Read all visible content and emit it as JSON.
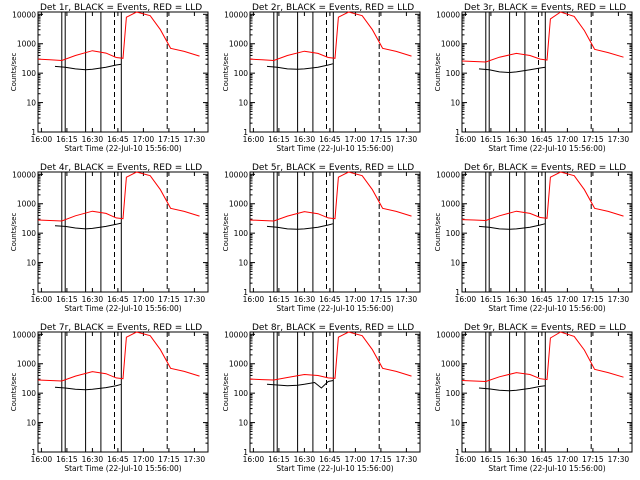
{
  "figure": {
    "grid": "3x3",
    "x_axis_label": "Start Time (22-Jul-10 15:56:00)",
    "y_axis_label": "Counts/sec"
  },
  "chart_data": {
    "type": "line",
    "log_y": true,
    "xlim": [
      "15:58",
      "17:38"
    ],
    "ylim": [
      1,
      12000
    ],
    "x_ticks": [
      "16:00",
      "16:15",
      "16:30",
      "16:45",
      "17:00",
      "17:15",
      "17:30"
    ],
    "y_ticks": [
      "1",
      "10",
      "100",
      "1000",
      "10000"
    ],
    "grid": false,
    "series_colors": {
      "events": "#000000",
      "lld": "#ff0000"
    },
    "panels": [
      {
        "title": "Det 1r, BLACK = Events, RED = LLD",
        "vlines_solid": [
          "16:12",
          "16:14",
          "16:26",
          "16:35",
          "16:47"
        ],
        "vlines_dashed": [
          "16:43",
          "17:14"
        ],
        "events": [
          [
            "16:08",
            "170"
          ],
          [
            "16:14",
            "160"
          ],
          [
            "16:20",
            "140"
          ],
          [
            "16:26",
            "130"
          ],
          [
            "16:30",
            "135"
          ],
          [
            "16:38",
            "160"
          ],
          [
            "16:44",
            "190"
          ],
          [
            "16:47",
            "200"
          ]
        ],
        "lld": [
          [
            "15:58",
            "300"
          ],
          [
            "16:05",
            "285"
          ],
          [
            "16:12",
            "270"
          ],
          [
            "16:20",
            "400"
          ],
          [
            "16:30",
            "580"
          ],
          [
            "16:38",
            "480"
          ],
          [
            "16:44",
            "340"
          ],
          [
            "16:48",
            "320"
          ],
          [
            "16:50",
            "8000"
          ],
          [
            "16:56",
            "12000"
          ],
          [
            "17:04",
            "9000"
          ],
          [
            "17:10",
            "3000"
          ],
          [
            "17:16",
            "700"
          ],
          [
            "17:24",
            "550"
          ],
          [
            "17:33",
            "380"
          ]
        ]
      },
      {
        "title": "Det 2r, BLACK = Events, RED = LLD",
        "vlines_solid": [
          "16:12",
          "16:14",
          "16:26",
          "16:35",
          "16:47"
        ],
        "vlines_dashed": [
          "16:43",
          "17:14"
        ],
        "events": [
          [
            "16:08",
            "170"
          ],
          [
            "16:14",
            "160"
          ],
          [
            "16:20",
            "140"
          ],
          [
            "16:26",
            "135"
          ],
          [
            "16:30",
            "140"
          ],
          [
            "16:38",
            "160"
          ],
          [
            "16:44",
            "190"
          ],
          [
            "16:47",
            "210"
          ]
        ],
        "lld": [
          [
            "15:58",
            "300"
          ],
          [
            "16:05",
            "285"
          ],
          [
            "16:12",
            "270"
          ],
          [
            "16:20",
            "400"
          ],
          [
            "16:30",
            "560"
          ],
          [
            "16:38",
            "470"
          ],
          [
            "16:44",
            "340"
          ],
          [
            "16:48",
            "320"
          ],
          [
            "16:50",
            "8000"
          ],
          [
            "16:56",
            "12000"
          ],
          [
            "17:04",
            "9000"
          ],
          [
            "17:10",
            "3000"
          ],
          [
            "17:16",
            "700"
          ],
          [
            "17:24",
            "550"
          ],
          [
            "17:33",
            "380"
          ]
        ]
      },
      {
        "title": "Det 3r, BLACK = Events, RED = LLD",
        "vlines_solid": [
          "16:12",
          "16:14",
          "16:26",
          "16:35",
          "16:47"
        ],
        "vlines_dashed": [
          "16:43",
          "17:14"
        ],
        "events": [
          [
            "16:08",
            "140"
          ],
          [
            "16:14",
            "130"
          ],
          [
            "16:20",
            "110"
          ],
          [
            "16:26",
            "105"
          ],
          [
            "16:30",
            "110"
          ],
          [
            "16:38",
            "130"
          ],
          [
            "16:44",
            "150"
          ],
          [
            "16:47",
            "160"
          ]
        ],
        "lld": [
          [
            "15:58",
            "260"
          ],
          [
            "16:05",
            "250"
          ],
          [
            "16:12",
            "240"
          ],
          [
            "16:20",
            "350"
          ],
          [
            "16:30",
            "470"
          ],
          [
            "16:38",
            "400"
          ],
          [
            "16:44",
            "300"
          ],
          [
            "16:48",
            "280"
          ],
          [
            "16:50",
            "7000"
          ],
          [
            "16:56",
            "12000"
          ],
          [
            "17:04",
            "8500"
          ],
          [
            "17:10",
            "2800"
          ],
          [
            "17:16",
            "650"
          ],
          [
            "17:24",
            "500"
          ],
          [
            "17:33",
            "350"
          ]
        ]
      },
      {
        "title": "Det 4r, BLACK = Events, RED = LLD",
        "vlines_solid": [
          "16:12",
          "16:14",
          "16:26",
          "16:35",
          "16:47"
        ],
        "vlines_dashed": [
          "16:43",
          "17:14"
        ],
        "events": [
          [
            "16:08",
            "180"
          ],
          [
            "16:14",
            "170"
          ],
          [
            "16:20",
            "150"
          ],
          [
            "16:26",
            "140"
          ],
          [
            "16:30",
            "145"
          ],
          [
            "16:38",
            "170"
          ],
          [
            "16:44",
            "200"
          ],
          [
            "16:47",
            "220"
          ]
        ],
        "lld": [
          [
            "15:58",
            "280"
          ],
          [
            "16:05",
            "270"
          ],
          [
            "16:12",
            "260"
          ],
          [
            "16:20",
            "390"
          ],
          [
            "16:30",
            "560"
          ],
          [
            "16:38",
            "470"
          ],
          [
            "16:44",
            "330"
          ],
          [
            "16:48",
            "310"
          ],
          [
            "16:50",
            "8000"
          ],
          [
            "16:56",
            "12000"
          ],
          [
            "17:04",
            "9000"
          ],
          [
            "17:10",
            "3000"
          ],
          [
            "17:16",
            "700"
          ],
          [
            "17:24",
            "550"
          ],
          [
            "17:33",
            "380"
          ]
        ]
      },
      {
        "title": "Det 5r, BLACK = Events, RED = LLD",
        "vlines_solid": [
          "16:12",
          "16:14",
          "16:26",
          "16:35",
          "16:47"
        ],
        "vlines_dashed": [
          "16:43",
          "17:14"
        ],
        "events": [
          [
            "16:08",
            "170"
          ],
          [
            "16:14",
            "160"
          ],
          [
            "16:20",
            "140"
          ],
          [
            "16:26",
            "135"
          ],
          [
            "16:30",
            "140"
          ],
          [
            "16:38",
            "160"
          ],
          [
            "16:44",
            "190"
          ],
          [
            "16:47",
            "210"
          ]
        ],
        "lld": [
          [
            "15:58",
            "280"
          ],
          [
            "16:05",
            "270"
          ],
          [
            "16:12",
            "260"
          ],
          [
            "16:20",
            "380"
          ],
          [
            "16:30",
            "540"
          ],
          [
            "16:38",
            "460"
          ],
          [
            "16:44",
            "330"
          ],
          [
            "16:48",
            "310"
          ],
          [
            "16:50",
            "8000"
          ],
          [
            "16:56",
            "12000"
          ],
          [
            "17:04",
            "9000"
          ],
          [
            "17:10",
            "3000"
          ],
          [
            "17:16",
            "700"
          ],
          [
            "17:24",
            "550"
          ],
          [
            "17:33",
            "380"
          ]
        ]
      },
      {
        "title": "Det 6r, BLACK = Events, RED = LLD",
        "vlines_solid": [
          "16:12",
          "16:14",
          "16:26",
          "16:35",
          "16:47"
        ],
        "vlines_dashed": [
          "16:43",
          "17:14"
        ],
        "events": [
          [
            "16:08",
            "170"
          ],
          [
            "16:14",
            "160"
          ],
          [
            "16:20",
            "140"
          ],
          [
            "16:26",
            "135"
          ],
          [
            "16:30",
            "140"
          ],
          [
            "16:38",
            "160"
          ],
          [
            "16:44",
            "190"
          ],
          [
            "16:47",
            "210"
          ]
        ],
        "lld": [
          [
            "15:58",
            "290"
          ],
          [
            "16:05",
            "280"
          ],
          [
            "16:12",
            "270"
          ],
          [
            "16:20",
            "390"
          ],
          [
            "16:30",
            "560"
          ],
          [
            "16:38",
            "470"
          ],
          [
            "16:44",
            "340"
          ],
          [
            "16:48",
            "320"
          ],
          [
            "16:50",
            "8000"
          ],
          [
            "16:56",
            "12000"
          ],
          [
            "17:04",
            "9000"
          ],
          [
            "17:10",
            "3000"
          ],
          [
            "17:16",
            "700"
          ],
          [
            "17:24",
            "550"
          ],
          [
            "17:33",
            "380"
          ]
        ]
      },
      {
        "title": "Det 7r, BLACK = Events, RED = LLD",
        "vlines_solid": [
          "16:12",
          "16:14",
          "16:26",
          "16:35",
          "16:47"
        ],
        "vlines_dashed": [
          "16:43",
          "17:14"
        ],
        "events": [
          [
            "16:08",
            "160"
          ],
          [
            "16:14",
            "150"
          ],
          [
            "16:20",
            "135"
          ],
          [
            "16:26",
            "130"
          ],
          [
            "16:30",
            "135"
          ],
          [
            "16:38",
            "155"
          ],
          [
            "16:44",
            "180"
          ],
          [
            "16:47",
            "200"
          ]
        ],
        "lld": [
          [
            "15:58",
            "280"
          ],
          [
            "16:05",
            "270"
          ],
          [
            "16:12",
            "260"
          ],
          [
            "16:20",
            "380"
          ],
          [
            "16:30",
            "540"
          ],
          [
            "16:38",
            "460"
          ],
          [
            "16:44",
            "330"
          ],
          [
            "16:48",
            "310"
          ],
          [
            "16:50",
            "8000"
          ],
          [
            "16:56",
            "12000"
          ],
          [
            "17:04",
            "9000"
          ],
          [
            "17:10",
            "3000"
          ],
          [
            "17:16",
            "700"
          ],
          [
            "17:24",
            "550"
          ],
          [
            "17:33",
            "380"
          ]
        ]
      },
      {
        "title": "Det 8r, BLACK = Events, RED = LLD",
        "vlines_solid": [
          "16:12",
          "16:14",
          "16:26",
          "16:35",
          "16:47"
        ],
        "vlines_dashed": [
          "16:43",
          "17:14"
        ],
        "events": [
          [
            "16:08",
            "200"
          ],
          [
            "16:14",
            "190"
          ],
          [
            "16:20",
            "180"
          ],
          [
            "16:26",
            "185"
          ],
          [
            "16:30",
            "200"
          ],
          [
            "16:36",
            "230"
          ],
          [
            "16:40",
            "150"
          ],
          [
            "16:44",
            "250"
          ],
          [
            "16:47",
            "270"
          ]
        ],
        "lld": [
          [
            "15:58",
            "300"
          ],
          [
            "16:05",
            "290"
          ],
          [
            "16:12",
            "280"
          ],
          [
            "16:20",
            "340"
          ],
          [
            "16:30",
            "430"
          ],
          [
            "16:38",
            "400"
          ],
          [
            "16:44",
            "330"
          ],
          [
            "16:48",
            "320"
          ],
          [
            "16:50",
            "8000"
          ],
          [
            "16:56",
            "12000"
          ],
          [
            "17:04",
            "9000"
          ],
          [
            "17:10",
            "3000"
          ],
          [
            "17:16",
            "700"
          ],
          [
            "17:24",
            "550"
          ],
          [
            "17:33",
            "380"
          ]
        ]
      },
      {
        "title": "Det 9r, BLACK = Events, RED = LLD",
        "vlines_solid": [
          "16:12",
          "16:14",
          "16:26",
          "16:35",
          "16:47"
        ],
        "vlines_dashed": [
          "16:43",
          "17:14"
        ],
        "events": [
          [
            "16:08",
            "150"
          ],
          [
            "16:14",
            "140"
          ],
          [
            "16:20",
            "125"
          ],
          [
            "16:26",
            "120"
          ],
          [
            "16:30",
            "125"
          ],
          [
            "16:38",
            "145"
          ],
          [
            "16:44",
            "170"
          ],
          [
            "16:47",
            "180"
          ]
        ],
        "lld": [
          [
            "15:58",
            "270"
          ],
          [
            "16:05",
            "260"
          ],
          [
            "16:12",
            "250"
          ],
          [
            "16:20",
            "360"
          ],
          [
            "16:30",
            "500"
          ],
          [
            "16:38",
            "430"
          ],
          [
            "16:44",
            "310"
          ],
          [
            "16:48",
            "290"
          ],
          [
            "16:50",
            "7500"
          ],
          [
            "16:56",
            "12000"
          ],
          [
            "17:04",
            "8500"
          ],
          [
            "17:10",
            "2900"
          ],
          [
            "17:16",
            "650"
          ],
          [
            "17:24",
            "500"
          ],
          [
            "17:33",
            "350"
          ]
        ]
      }
    ]
  }
}
